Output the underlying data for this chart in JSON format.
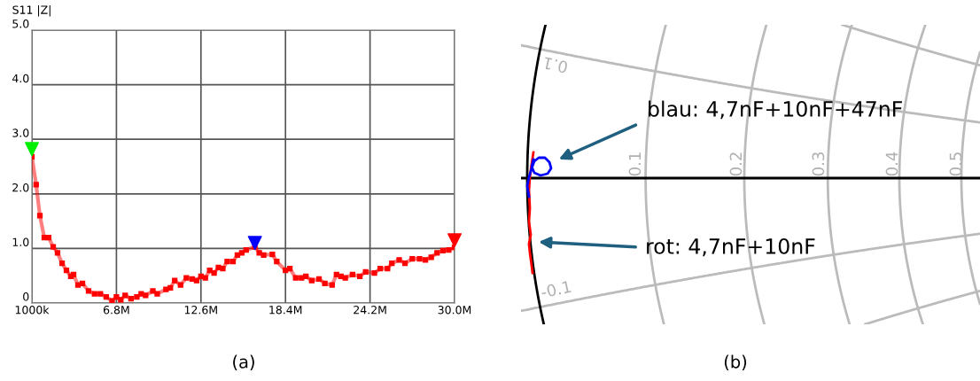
{
  "chart_data": [
    {
      "type": "line",
      "ylabel": "S11 |Z|",
      "annotations": [
        "(a)"
      ],
      "xlim": [
        1000000,
        30000000
      ],
      "xticks": [
        {
          "value": 1000000,
          "label": "1000k"
        },
        {
          "value": 6800000,
          "label": "6.8M"
        },
        {
          "value": 12600000,
          "label": "12.6M"
        },
        {
          "value": 18400000,
          "label": "18.4M"
        },
        {
          "value": 24200000,
          "label": "24.2M"
        },
        {
          "value": 30000000,
          "label": "30.0M"
        }
      ],
      "ylim": [
        0,
        5
      ],
      "yticks": [
        0,
        {
          "value": 1,
          "label": "1.0"
        },
        {
          "value": 2,
          "label": "2.0"
        },
        {
          "value": 3,
          "label": "3.0"
        },
        {
          "value": 4,
          "label": "4.0"
        },
        {
          "value": 5,
          "label": "5.0"
        }
      ],
      "grid": true,
      "series": [
        {
          "color": "#ff0000",
          "marker": "square",
          "x": [
            1000000,
            1290000,
            1550000,
            1850000,
            2150000,
            2460000,
            2760000,
            3070000,
            3370000,
            3670000,
            3860000,
            4160000,
            4470000,
            4890000,
            5300000,
            5700000,
            6100000,
            6500000,
            6800000,
            7100000,
            7400000,
            7800000,
            8200000,
            8500000,
            8800000,
            9300000,
            9600000,
            10200000,
            10500000,
            10800000,
            11200000,
            11600000,
            12000000,
            12300000,
            12600000,
            12900000,
            13200000,
            13500000,
            13800000,
            14100000,
            14400000,
            14800000,
            15100000,
            15400000,
            15700000,
            16300000,
            16600000,
            16900000,
            17500000,
            17800000,
            18400000,
            18700000,
            19100000,
            19500000,
            19800000,
            20200000,
            20700000,
            21100000,
            21600000,
            21900000,
            22200000,
            22500000,
            23000000,
            23500000,
            23900000,
            24500000,
            24900000,
            25400000,
            25700000,
            26200000,
            26600000,
            27100000,
            27600000,
            28000000,
            28400000,
            28800000,
            29200000,
            29600000,
            30000000
          ],
          "values": [
            2.68,
            2.17,
            1.6,
            1.2,
            1.2,
            1.03,
            0.92,
            0.73,
            0.6,
            0.49,
            0.52,
            0.33,
            0.36,
            0.22,
            0.17,
            0.17,
            0.11,
            0.04,
            0.11,
            0.06,
            0.14,
            0.08,
            0.11,
            0.17,
            0.14,
            0.22,
            0.17,
            0.25,
            0.28,
            0.41,
            0.33,
            0.46,
            0.44,
            0.41,
            0.49,
            0.46,
            0.6,
            0.55,
            0.65,
            0.63,
            0.76,
            0.76,
            0.88,
            0.92,
            0.97,
            1.03,
            0.92,
            0.88,
            0.89,
            0.76,
            0.6,
            0.63,
            0.46,
            0.46,
            0.49,
            0.41,
            0.44,
            0.36,
            0.33,
            0.52,
            0.49,
            0.46,
            0.52,
            0.49,
            0.57,
            0.55,
            0.63,
            0.63,
            0.73,
            0.79,
            0.73,
            0.81,
            0.81,
            0.79,
            0.84,
            0.92,
            0.96,
            0.97,
            1.02
          ]
        },
        {
          "type": "scatter",
          "marker": "triangle",
          "x": [
            1000000,
            16300000,
            30000000
          ],
          "values": [
            2.82,
            1.1,
            1.15
          ],
          "colors": [
            "#00ee00",
            "#0000ff",
            "#ff0000"
          ]
        }
      ]
    },
    {
      "type": "other",
      "annotations": [
        "blau: 4,7nF+10nF+47nF",
        "rot: 4,7nF+10nF",
        "0.1",
        "0.2",
        "0.3",
        "0.4",
        "0.5",
        "0.1",
        "-0.1",
        "(b)"
      ]
    }
  ]
}
